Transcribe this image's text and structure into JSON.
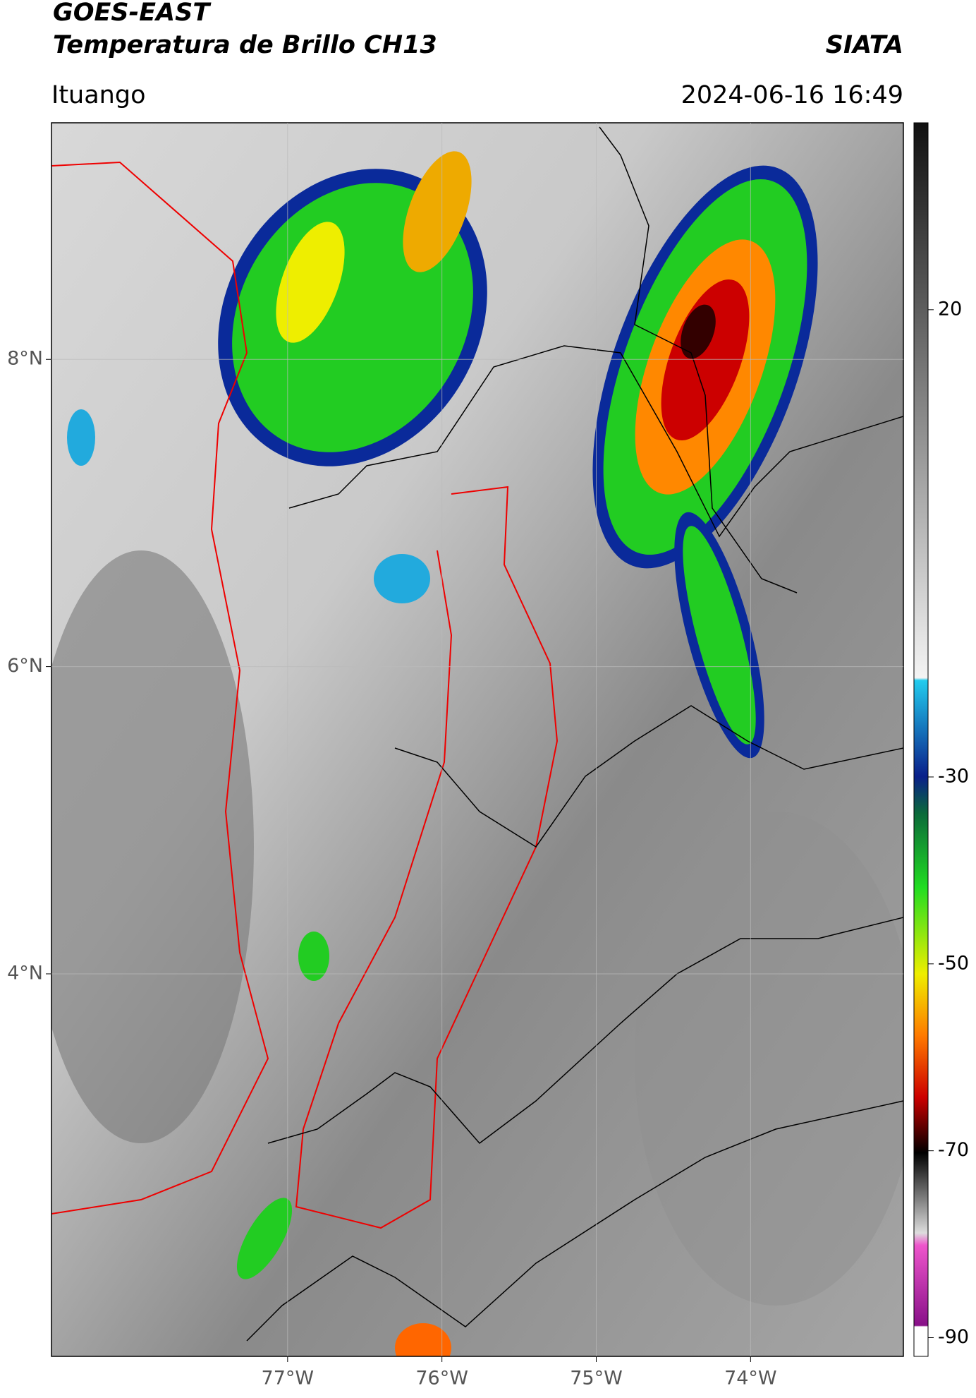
{
  "chart_data": {
    "type": "map",
    "title": "GOES-EAST",
    "subtitle": "Temperatura de Brillo CH13",
    "source": "SIATA",
    "location": "Ituango",
    "datetime": "2024-06-16 16:49",
    "xlim": [
      -78.53,
      -73.01
    ],
    "ylim": [
      1.51,
      9.54
    ],
    "xticks": [
      {
        "value": -77,
        "label": "77°W"
      },
      {
        "value": -76,
        "label": "76°W"
      },
      {
        "value": -75,
        "label": "75°W"
      },
      {
        "value": -74,
        "label": "74°W"
      }
    ],
    "yticks": [
      {
        "value": 8,
        "label": "8°N"
      },
      {
        "value": 6,
        "label": "6°N"
      },
      {
        "value": 4,
        "label": "4°N"
      }
    ],
    "grid": true,
    "colorbar": {
      "lim": [
        -92,
        40
      ],
      "ticks": [
        20,
        -30,
        -50,
        -70,
        -90
      ]
    }
  }
}
